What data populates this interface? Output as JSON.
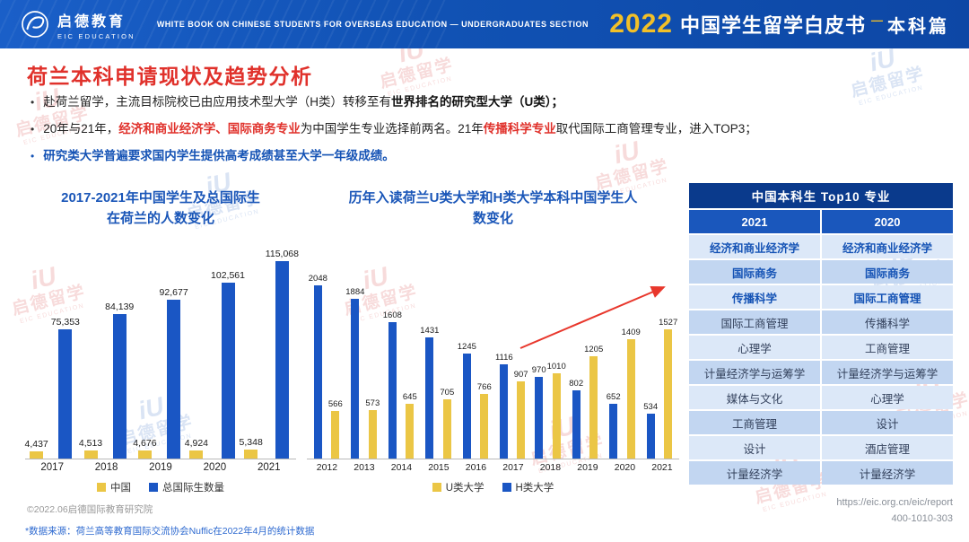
{
  "colors": {
    "header_blue": "#1152B4",
    "accent_red": "#E0312B",
    "chart_title_blue": "#1A56B8",
    "bar_yellow": "#EBC645",
    "bar_blue": "#1A56C4",
    "table_header_dark": "#0A3A8C",
    "table_header_mid": "#1A57BC",
    "highlight_blue": "#1553B5",
    "gold": "#F2C028"
  },
  "header": {
    "logo": {
      "cn": "启德教育",
      "en": "EIC EDUCATION"
    },
    "tagline": "WHITE BOOK ON CHINESE STUDENTS FOR OVERSEAS EDUCATION — UNDERGRADUATES SECTION",
    "edition": {
      "year": "2022",
      "title": "中国学生留学白皮书",
      "dash": "—",
      "section": "本科篇"
    }
  },
  "main": {
    "title": "荷兰本科申请现状及趋势分析",
    "bullets": [
      {
        "marker": "dark",
        "segments": [
          {
            "text": "赴荷兰留学，主流目标院校已由应用技术型大学（H类）转移至有",
            "style": "normal"
          },
          {
            "text": "世界排名的研究型大学（U类）；",
            "style": "bold"
          }
        ]
      },
      {
        "marker": "dark",
        "segments": [
          {
            "text": "20年与21年，",
            "style": "normal"
          },
          {
            "text": "经济和商业经济学、国际商务专业",
            "style": "red"
          },
          {
            "text": "为中国学生专业选择前两名。21年",
            "style": "normal"
          },
          {
            "text": "传播科学专业",
            "style": "red"
          },
          {
            "text": "取代国际工商管理专业，进入TOP3；",
            "style": "normal"
          }
        ]
      },
      {
        "marker": "blue",
        "segments": [
          {
            "text": "研究类大学普遍要求国内学生提供高考成绩甚至大学一年级成绩。",
            "style": "blue"
          }
        ]
      }
    ]
  },
  "chart_data": [
    {
      "type": "bar",
      "title": "2017-2021年中国学生及总国际生在荷兰的人数变化",
      "title_lines": [
        "2017-2021年中国学生及总国际生",
        "在荷兰的人数变化"
      ],
      "categories": [
        "2017",
        "2018",
        "2019",
        "2020",
        "2021"
      ],
      "series": [
        {
          "name": "中国",
          "color": "#EBC645",
          "values": [
            4437,
            4513,
            4676,
            4924,
            5348
          ],
          "labels": [
            "4,437",
            "4,513",
            "4,676",
            "4,924",
            "5,348"
          ]
        },
        {
          "name": "总国际生数量",
          "color": "#1A56C4",
          "values": [
            75353,
            84139,
            92677,
            102561,
            115068
          ],
          "labels": [
            "75,353",
            "84,139",
            "92,677",
            "102,561",
            "115,068"
          ]
        }
      ],
      "legend": [
        "中国",
        "总国际生数量"
      ],
      "ylim": [
        0,
        122000
      ],
      "grid": false,
      "legend_position": "bottom"
    },
    {
      "type": "bar",
      "title": "历年入读荷兰U类大学和H类大学本科中国学生人数变化",
      "title_lines": [
        "历年入读荷兰U类大学和H类大学本科中国学生人",
        "数变化"
      ],
      "categories": [
        "2012",
        "2013",
        "2014",
        "2015",
        "2016",
        "2017",
        "2018",
        "2019",
        "2020",
        "2021"
      ],
      "series": [
        {
          "name": "H类大学",
          "color": "#1A56C4",
          "values": [
            2048,
            1884,
            1608,
            1431,
            1245,
            1116,
            970,
            802,
            652,
            534
          ]
        },
        {
          "name": "U类大学",
          "color": "#EBC645",
          "values": [
            566,
            573,
            645,
            705,
            766,
            907,
            1010,
            1205,
            1409,
            1527
          ]
        }
      ],
      "legend": [
        "U类大学",
        "H类大学"
      ],
      "ylim": [
        0,
        2300
      ],
      "grid": false,
      "legend_position": "bottom",
      "annotation": {
        "type": "trend-arrow",
        "color": "#E8372C"
      }
    }
  ],
  "table": {
    "title": "中国本科生 Top10 专业",
    "columns": [
      "2021",
      "2020"
    ],
    "rows": [
      {
        "values": [
          "经济和商业经济学",
          "经济和商业经济学"
        ],
        "highlight": true
      },
      {
        "values": [
          "国际商务",
          "国际商务"
        ],
        "highlight": true
      },
      {
        "values": [
          "传播科学",
          "国际工商管理"
        ],
        "highlight": true
      },
      {
        "values": [
          "国际工商管理",
          "传播科学"
        ],
        "highlight": false
      },
      {
        "values": [
          "心理学",
          "工商管理"
        ],
        "highlight": false
      },
      {
        "values": [
          "计量经济学与运筹学",
          "计量经济学与运筹学"
        ],
        "highlight": false
      },
      {
        "values": [
          "媒体与文化",
          "心理学"
        ],
        "highlight": false
      },
      {
        "values": [
          "工商管理",
          "设计"
        ],
        "highlight": false
      },
      {
        "values": [
          "设计",
          "酒店管理"
        ],
        "highlight": false
      },
      {
        "values": [
          "计量经济学",
          "计量经济学"
        ],
        "highlight": false
      }
    ]
  },
  "footer": {
    "copyright": "©2022.06启德国际教育研究院",
    "source_note": "*数据来源：荷兰高等教育国际交流协会Nuffic在2022年4月的统计数据",
    "url": "https://eic.org.cn/eic/report",
    "phone": "400-1010-303"
  },
  "watermark": {
    "mark": "iU",
    "cn": "启德留学",
    "en": "EIC EDUCATION"
  }
}
